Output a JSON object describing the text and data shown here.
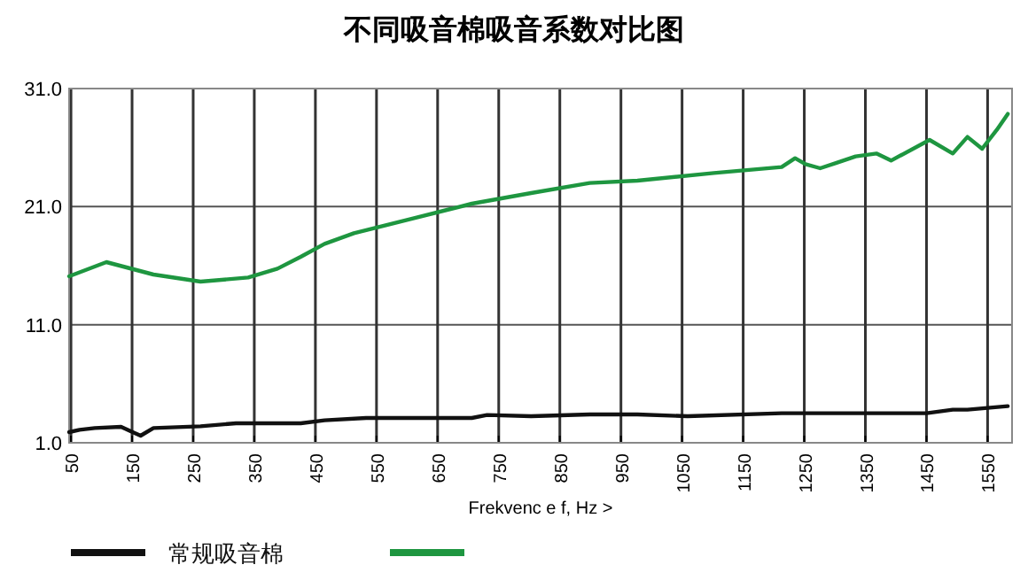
{
  "chart_data": {
    "type": "line",
    "title": "不同吸音棉吸音系数对比图",
    "xlabel": "Frekvenc e f,  Hz  >",
    "xlim": [
      47,
      1590
    ],
    "ylim": [
      1,
      31
    ],
    "xticks": [
      50,
      150,
      250,
      350,
      450,
      550,
      650,
      750,
      850,
      950,
      1050,
      1150,
      1250,
      1350,
      1450,
      1550
    ],
    "yticks": [
      {
        "value": 1,
        "label": "1.0"
      },
      {
        "value": 11,
        "label": "11.0"
      },
      {
        "value": 21,
        "label": "21.0"
      },
      {
        "value": 31,
        "label": "31.0"
      }
    ],
    "grid": true,
    "legend": "bottom",
    "series": [
      {
        "name": "常规吸音棉",
        "color": "#111111",
        "x": [
          47,
          64,
          89,
          132,
          151,
          164,
          185,
          262,
          320,
          426,
          465,
          533,
          706,
          731,
          803,
          899,
          977,
          1059,
          1213,
          1450,
          1493,
          1517,
          1583
        ],
        "values": [
          1.9,
          2.1,
          2.25,
          2.35,
          1.9,
          1.6,
          2.25,
          2.4,
          2.65,
          2.65,
          2.9,
          3.1,
          3.1,
          3.35,
          3.25,
          3.4,
          3.4,
          3.25,
          3.5,
          3.5,
          3.8,
          3.8,
          4.1
        ]
      },
      {
        "color": "#1e9640",
        "x": [
          47,
          108,
          185,
          262,
          340,
          388,
          426,
          465,
          513,
          610,
          706,
          803,
          899,
          977,
          1102,
          1213,
          1235,
          1252,
          1276,
          1305,
          1334,
          1368,
          1392,
          1455,
          1493,
          1517,
          1541,
          1565,
          1583
        ],
        "values": [
          15.1,
          16.3,
          15.25,
          14.65,
          15.0,
          15.75,
          16.75,
          17.85,
          18.75,
          20.0,
          21.25,
          22.15,
          23.0,
          23.2,
          23.85,
          24.35,
          25.1,
          24.6,
          24.25,
          24.75,
          25.25,
          25.5,
          24.9,
          26.65,
          25.5,
          26.9,
          25.9,
          27.5,
          28.85
        ]
      }
    ]
  }
}
